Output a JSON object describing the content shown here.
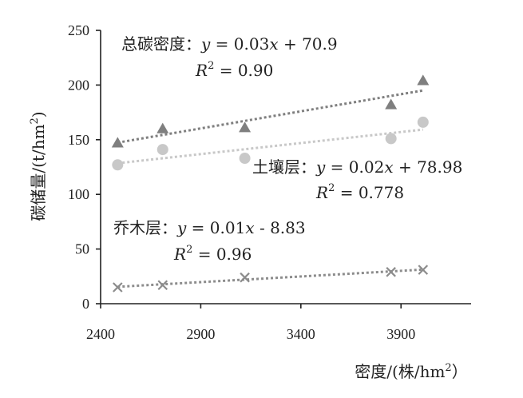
{
  "chart_data": {
    "type": "scatter",
    "x": [
      2485,
      2710,
      3120,
      3850,
      4010
    ],
    "xlim": [
      2400,
      4250
    ],
    "ylim": [
      0,
      250
    ],
    "xticks": [
      2400,
      2900,
      3400,
      3900
    ],
    "yticks": [
      0,
      50,
      100,
      150,
      200,
      250
    ],
    "xlabel_main": "密度/(株/hm",
    "xlabel_sup": "2",
    "xlabel_tail": "）",
    "ylabel_main": "碳储量/(t/hm",
    "ylabel_sup": "2",
    "ylabel_tail": ")",
    "grid": false,
    "series": [
      {
        "name": "总碳密度",
        "marker": "triangle",
        "color": "#7f7f7f",
        "values": [
          147,
          160,
          161,
          182,
          204
        ],
        "trend": {
          "slope": 0.03,
          "intercept": 70.9,
          "color": "#7f7f7f"
        },
        "annotation": {
          "eq_prefix": "总碳密度：",
          "eq_y": "y",
          "eq_mid": " = 0.03",
          "eq_x": "x",
          "eq_tail": " + 70.9",
          "r2_label": "R",
          "r2_sup": "2",
          "r2_value": " = 0.90"
        }
      },
      {
        "name": "土壤层",
        "marker": "circle",
        "color": "#c8c8c8",
        "values": [
          127,
          141,
          133,
          151,
          166
        ],
        "trend": {
          "slope": 0.02,
          "intercept": 78.98,
          "color": "#c8c8c8"
        },
        "annotation": {
          "eq_prefix": "土壤层：",
          "eq_y": "y",
          "eq_mid": " = 0.02",
          "eq_x": "x",
          "eq_tail": " + 78.98",
          "r2_label": "R",
          "r2_sup": "2",
          "r2_value": " = 0.778"
        }
      },
      {
        "name": "乔木层",
        "marker": "x",
        "color": "#8c8c8c",
        "values": [
          15,
          17,
          24,
          29,
          31
        ],
        "trend": {
          "slope": 0.01,
          "intercept": -8.83,
          "color": "#8c8c8c"
        },
        "annotation": {
          "eq_prefix": "乔木层：",
          "eq_y": "y",
          "eq_mid": " = 0.01",
          "eq_x": "x",
          "eq_tail": " - 8.83",
          "r2_label": "R",
          "r2_sup": "2",
          "r2_value": " = 0.96"
        }
      }
    ]
  }
}
